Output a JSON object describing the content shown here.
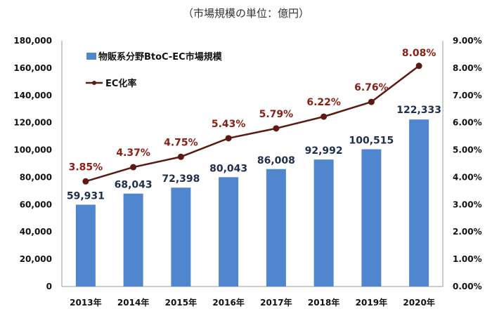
{
  "unit_note": "（市場規模の単位：億円）",
  "chart_data": {
    "type": "bar",
    "categories": [
      "2013年",
      "2014年",
      "2015年",
      "2016年",
      "2017年",
      "2018年",
      "2019年",
      "2020年"
    ],
    "series": [
      {
        "name": "物販系分野BtoC-EC市場規模",
        "type": "bar",
        "axis": "left",
        "values": [
          59931,
          68043,
          72398,
          80043,
          86008,
          92992,
          100515,
          122333
        ],
        "labels": [
          "59,931",
          "68,043",
          "72,398",
          "80,043",
          "86,008",
          "92,992",
          "100,515",
          "122,333"
        ],
        "color": "#4f86cd"
      },
      {
        "name": "EC化率",
        "type": "line",
        "axis": "right",
        "values": [
          3.85,
          4.37,
          4.75,
          5.43,
          5.79,
          6.22,
          6.76,
          8.08
        ],
        "labels": [
          "3.85%",
          "4.37%",
          "4.75%",
          "5.43%",
          "5.79%",
          "6.22%",
          "6.76%",
          "8.08%"
        ],
        "color": "#5c1a13"
      }
    ],
    "ylim_left": [
      0,
      180000
    ],
    "yticks_left": [
      "0",
      "20,000",
      "40,000",
      "60,000",
      "80,000",
      "100,000",
      "120,000",
      "140,000",
      "160,000",
      "180,000"
    ],
    "ylim_right": [
      0,
      9
    ],
    "yticks_right": [
      "0.00%",
      "1.00%",
      "2.00%",
      "3.00%",
      "4.00%",
      "5.00%",
      "6.00%",
      "7.00%",
      "8.00%",
      "9.00%"
    ],
    "grid": false,
    "legend_position": "top-left"
  }
}
